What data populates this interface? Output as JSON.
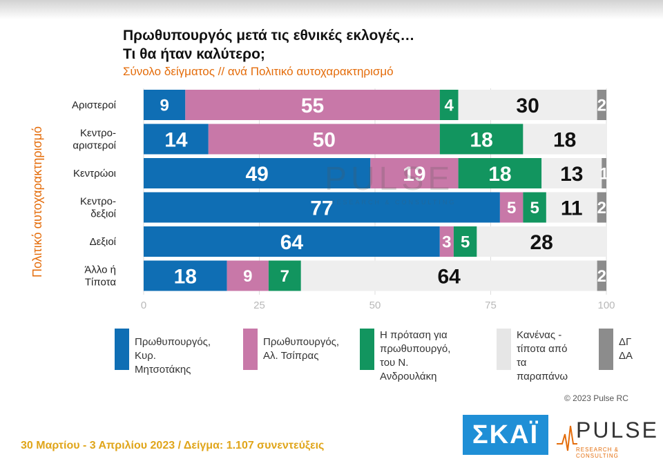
{
  "title_line1": "Πρωθυπουργός μετά τις εθνικές εκλογές…",
  "title_line2": "Τι θα ήταν καλύτερο;",
  "subtitle": "Σύνολο δείγματος // ανά Πολιτικό αυτοχαρακτηρισμό",
  "y_axis_title": "Πολιτικό αυτοχαρακτηρισμό",
  "watermark": "PULSE",
  "watermark_sub": "RESEARCH & CONSULTING",
  "copyright": "© 2023 Pulse RC",
  "footer": "30 Μαρτίου - 3  Απριλίου  2023  /  Δείγμα:  1.107 συνεντεύξεις",
  "logo_skai": "ΣΚΑΪ",
  "logo_pulse": "PULSE",
  "logo_pulse_sub": "RESEARCH & CONSULTING",
  "chart_data": {
    "type": "bar",
    "orientation": "horizontal-stacked-100",
    "categories": [
      [
        "Αριστεροί"
      ],
      [
        "Κεντρο-",
        "αριστεροί"
      ],
      [
        "Κεντρώοι"
      ],
      [
        "Κεντρο-",
        "δεξιοί"
      ],
      [
        "Δεξιοί"
      ],
      [
        "Άλλο ή",
        "Τίποτα"
      ]
    ],
    "series": [
      {
        "name": "Πρωθυπουργός, Κυρ. Μητσοτάκης",
        "legend_lines": [
          "Πρωθυπουργός,",
          "Κυρ. Μητσοτάκης"
        ],
        "color": "#0f6eb4",
        "label_color": "#ffffff",
        "values": [
          9,
          14,
          49,
          77,
          64,
          18
        ]
      },
      {
        "name": "Πρωθυπουργός, Αλ. Τσίπρας",
        "legend_lines": [
          "Πρωθυπουργός,",
          "Αλ. Τσίπρας"
        ],
        "color": "#c878a8",
        "label_color": "#ffffff",
        "values": [
          55,
          50,
          19,
          5,
          3,
          9
        ]
      },
      {
        "name": "Η πρόταση για πρωθυπουργό, του Ν. Ανδρουλάκη",
        "legend_lines": [
          "Η πρόταση για",
          "πρωθυπουργό,",
          "του Ν. Ανδρουλάκη"
        ],
        "color": "#12955f",
        "label_color": "#ffffff",
        "values": [
          4,
          18,
          18,
          5,
          5,
          7
        ]
      },
      {
        "name": "Κανένας - τίποτα από τα παραπάνω",
        "legend_lines": [
          "Κανένας -",
          "τίποτα από",
          "τα παραπάνω"
        ],
        "color": "#eeeeee",
        "label_color": "#111111",
        "values": [
          30,
          18,
          13,
          11,
          28,
          64
        ]
      },
      {
        "name": "ΔΓ/ΔΑ",
        "legend_lines": [
          "ΔΓ",
          "ΔΑ"
        ],
        "color": "#8c8c8c",
        "label_color": "#ffffff",
        "values": [
          2,
          null,
          1,
          2,
          null,
          2
        ]
      }
    ],
    "xlim": [
      0,
      100
    ],
    "xticks": [
      0,
      25,
      50,
      75,
      100
    ]
  }
}
